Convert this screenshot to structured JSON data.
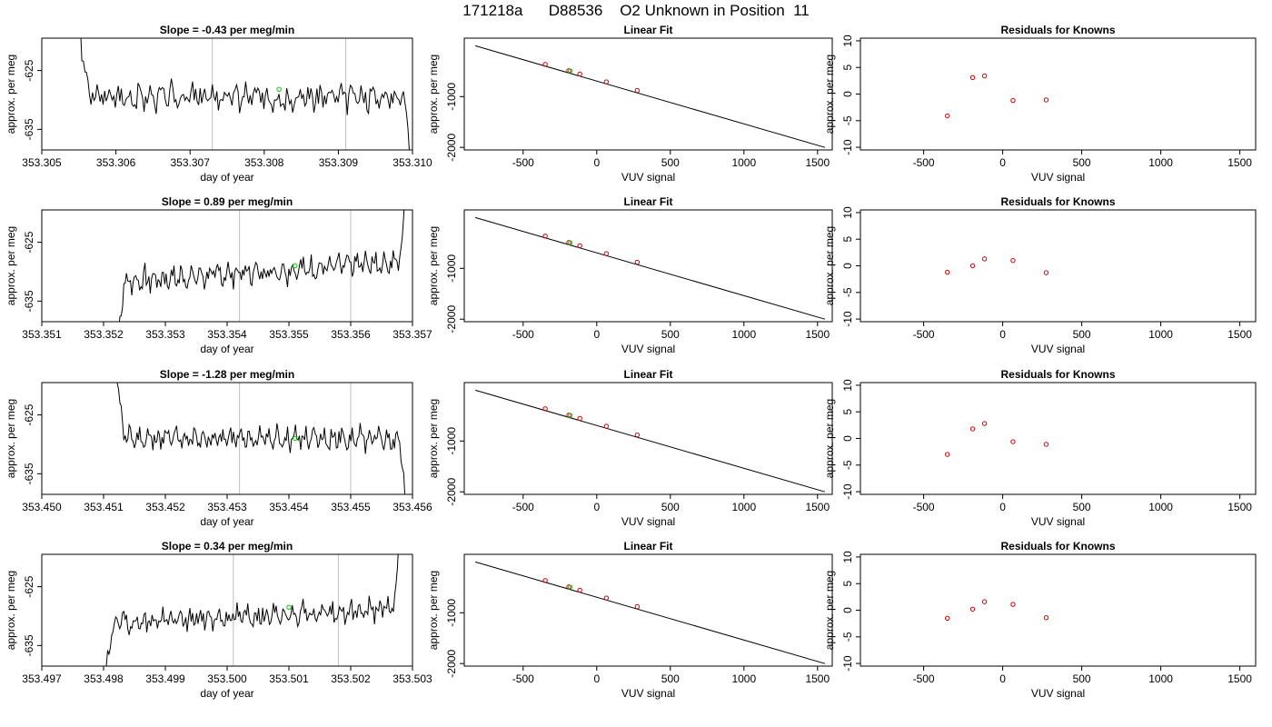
{
  "page": {
    "title": "171218a      D88536    O2 Unknown in Position  11"
  },
  "chart_data": [
    {
      "type": "line",
      "panel": "trace",
      "row": 0,
      "title": "Slope =  -0.43  per meg/min",
      "xlabel": "day of year",
      "ylabel": "approx. per meg",
      "xlim": [
        353.305,
        353.31
      ],
      "ylim": [
        -638.5,
        -619.5
      ],
      "xticks": [
        "353.305",
        "353.306",
        "353.307",
        "353.308",
        "353.309",
        "353.310"
      ],
      "yticks": [
        "-625",
        "-635"
      ],
      "vlines": [
        353.3073,
        353.3091
      ],
      "marker": {
        "x": 353.3082,
        "y": -628.2
      },
      "series": [
        {
          "start": 353.3055,
          "end": 353.31,
          "baseline": -629.5,
          "amp": 2.2,
          "lead_in": "down",
          "tail": "down",
          "seed": 3
        }
      ]
    },
    {
      "type": "line",
      "panel": "fit",
      "row": 0,
      "title": "Linear Fit",
      "xlabel": "VUV signal",
      "ylabel": "approx. per meg",
      "xlim": [
        -900,
        1600
      ],
      "ylim": [
        -2050,
        150
      ],
      "xticks": [
        "-500",
        "0",
        "500",
        "1000",
        "1500"
      ],
      "yticks": [
        "-1000",
        "-2000"
      ],
      "line": {
        "x": [
          -825,
          1550
        ],
        "y": [
          0,
          -2000
        ]
      },
      "points": {
        "x": [
          -350,
          -190,
          -115,
          65,
          275
        ],
        "y": [
          -365,
          -490,
          -555,
          -710,
          -880
        ]
      },
      "highlight": {
        "x": -180,
        "y": -495
      }
    },
    {
      "type": "scatter",
      "panel": "resid",
      "row": 0,
      "title": "Residuals for Knowns",
      "xlabel": "VUV signal",
      "ylabel": "approx. per meg",
      "xlim": [
        -900,
        1600
      ],
      "ylim": [
        -10.5,
        10.5
      ],
      "xticks": [
        "-500",
        "0",
        "500",
        "1000",
        "1500"
      ],
      "yticks": [
        "-10",
        "-5",
        "0",
        "5",
        "10"
      ],
      "points": {
        "x": [
          -350,
          -190,
          -115,
          65,
          275
        ],
        "y": [
          -4.1,
          3.1,
          3.4,
          -1.2,
          -1.1
        ]
      }
    },
    {
      "type": "line",
      "panel": "trace",
      "row": 1,
      "title": "Slope =  0.89  per meg/min",
      "xlabel": "day of year",
      "ylabel": "approx. per meg",
      "xlim": [
        353.351,
        353.357
      ],
      "ylim": [
        -638.5,
        -619.5
      ],
      "xticks": [
        "353.351",
        "353.352",
        "353.353",
        "353.354",
        "353.355",
        "353.356",
        "353.357"
      ],
      "yticks": [
        "-625",
        "-635"
      ],
      "vlines": [
        353.3542,
        353.356
      ],
      "marker": {
        "x": 353.3551,
        "y": -629.0
      },
      "series": [
        {
          "start": 353.3522,
          "end": 353.3569,
          "baseline": -630.0,
          "amp": 2.0,
          "lead_in": "up",
          "tail": "up",
          "trend": 3.5,
          "seed": 7
        }
      ]
    },
    {
      "type": "line",
      "panel": "fit",
      "row": 1,
      "title": "Linear Fit",
      "xlabel": "VUV signal",
      "ylabel": "approx. per meg",
      "xlim": [
        -900,
        1600
      ],
      "ylim": [
        -2050,
        150
      ],
      "xticks": [
        "-500",
        "0",
        "500",
        "1000",
        "1500"
      ],
      "yticks": [
        "-1000",
        "-2000"
      ],
      "line": {
        "x": [
          -825,
          1550
        ],
        "y": [
          0,
          -2000
        ]
      },
      "points": {
        "x": [
          -350,
          -190,
          -115,
          65,
          275
        ],
        "y": [
          -365,
          -490,
          -555,
          -710,
          -880
        ]
      },
      "highlight": {
        "x": -180,
        "y": -495
      }
    },
    {
      "type": "scatter",
      "panel": "resid",
      "row": 1,
      "title": "Residuals for Knowns",
      "xlabel": "VUV signal",
      "ylabel": "approx. per meg",
      "xlim": [
        -900,
        1600
      ],
      "ylim": [
        -10.5,
        10.5
      ],
      "xticks": [
        "-500",
        "0",
        "500",
        "1000",
        "1500"
      ],
      "yticks": [
        "-10",
        "-5",
        "0",
        "5",
        "10"
      ],
      "points": {
        "x": [
          -350,
          -190,
          -115,
          65,
          275
        ],
        "y": [
          -1.2,
          0.0,
          1.3,
          1.0,
          -1.3
        ]
      }
    },
    {
      "type": "line",
      "panel": "trace",
      "row": 2,
      "title": "Slope =  -1.28  per meg/min",
      "xlabel": "day of year",
      "ylabel": "approx. per meg",
      "xlim": [
        353.45,
        353.456
      ],
      "ylim": [
        -638.5,
        -619.5
      ],
      "xticks": [
        "353.450",
        "353.451",
        "353.452",
        "353.453",
        "353.454",
        "353.455",
        "353.456"
      ],
      "yticks": [
        "-625",
        "-635"
      ],
      "vlines": [
        353.4532,
        353.455
      ],
      "marker": {
        "x": 353.4541,
        "y": -629.0
      },
      "series": [
        {
          "start": 353.4512,
          "end": 353.4559,
          "baseline": -629.0,
          "amp": 1.9,
          "lead_in": "down",
          "tail": "down",
          "seed": 11
        }
      ]
    },
    {
      "type": "line",
      "panel": "fit",
      "row": 2,
      "title": "Linear Fit",
      "xlabel": "VUV signal",
      "ylabel": "approx. per meg",
      "xlim": [
        -900,
        1600
      ],
      "ylim": [
        -2050,
        150
      ],
      "xticks": [
        "-500",
        "0",
        "500",
        "1000",
        "1500"
      ],
      "yticks": [
        "-1000",
        "-2000"
      ],
      "line": {
        "x": [
          -825,
          1550
        ],
        "y": [
          0,
          -2000
        ]
      },
      "points": {
        "x": [
          -350,
          -190,
          -115,
          65,
          275
        ],
        "y": [
          -365,
          -490,
          -555,
          -710,
          -880
        ]
      },
      "highlight": {
        "x": -180,
        "y": -495
      }
    },
    {
      "type": "scatter",
      "panel": "resid",
      "row": 2,
      "title": "Residuals for Knowns",
      "xlabel": "VUV signal",
      "ylabel": "approx. per meg",
      "xlim": [
        -900,
        1600
      ],
      "ylim": [
        -10.5,
        10.5
      ],
      "xticks": [
        "-500",
        "0",
        "500",
        "1000",
        "1500"
      ],
      "yticks": [
        "-10",
        "-5",
        "0",
        "5",
        "10"
      ],
      "points": {
        "x": [
          -350,
          -190,
          -115,
          65,
          275
        ],
        "y": [
          -3.0,
          1.8,
          2.8,
          -0.6,
          -1.1
        ]
      }
    },
    {
      "type": "line",
      "panel": "trace",
      "row": 3,
      "title": "Slope =  0.34  per meg/min",
      "xlabel": "day of year",
      "ylabel": "approx. per meg",
      "xlim": [
        353.497,
        353.503
      ],
      "ylim": [
        -638.5,
        -619.5
      ],
      "xticks": [
        "353.497",
        "353.498",
        "353.499",
        "353.500",
        "353.501",
        "353.502",
        "353.503"
      ],
      "yticks": [
        "-625",
        "-635"
      ],
      "vlines": [
        353.5001,
        353.5018
      ],
      "marker": {
        "x": 353.501,
        "y": -628.5
      },
      "series": [
        {
          "start": 353.498,
          "end": 353.5028,
          "baseline": -630.0,
          "amp": 1.9,
          "lead_in": "up",
          "tail": "up",
          "trend": 2.5,
          "seed": 19
        }
      ]
    },
    {
      "type": "line",
      "panel": "fit",
      "row": 3,
      "title": "Linear Fit",
      "xlabel": "VUV signal",
      "ylabel": "approx. per meg",
      "xlim": [
        -900,
        1600
      ],
      "ylim": [
        -2050,
        150
      ],
      "xticks": [
        "-500",
        "0",
        "500",
        "1000",
        "1500"
      ],
      "yticks": [
        "-1000",
        "-2000"
      ],
      "line": {
        "x": [
          -825,
          1550
        ],
        "y": [
          0,
          -2000
        ]
      },
      "points": {
        "x": [
          -350,
          -190,
          -115,
          65,
          275
        ],
        "y": [
          -365,
          -490,
          -555,
          -710,
          -880
        ]
      },
      "highlight": {
        "x": -180,
        "y": -495
      }
    },
    {
      "type": "scatter",
      "panel": "resid",
      "row": 3,
      "title": "Residuals for Knowns",
      "xlabel": "VUV signal",
      "ylabel": "approx. per meg",
      "xlim": [
        -900,
        1600
      ],
      "ylim": [
        -10.5,
        10.5
      ],
      "xticks": [
        "-500",
        "0",
        "500",
        "1000",
        "1500"
      ],
      "yticks": [
        "-10",
        "-5",
        "0",
        "5",
        "10"
      ],
      "points": {
        "x": [
          -350,
          -190,
          -115,
          65,
          275
        ],
        "y": [
          -1.5,
          0.2,
          1.6,
          1.1,
          -1.4
        ]
      }
    }
  ],
  "colors": {
    "trace": "#000000",
    "fit_line": "#000000",
    "points": "#cc0000",
    "highlight": "#00cc00",
    "vlines": "#bfbfbf",
    "axes": "#000000"
  }
}
